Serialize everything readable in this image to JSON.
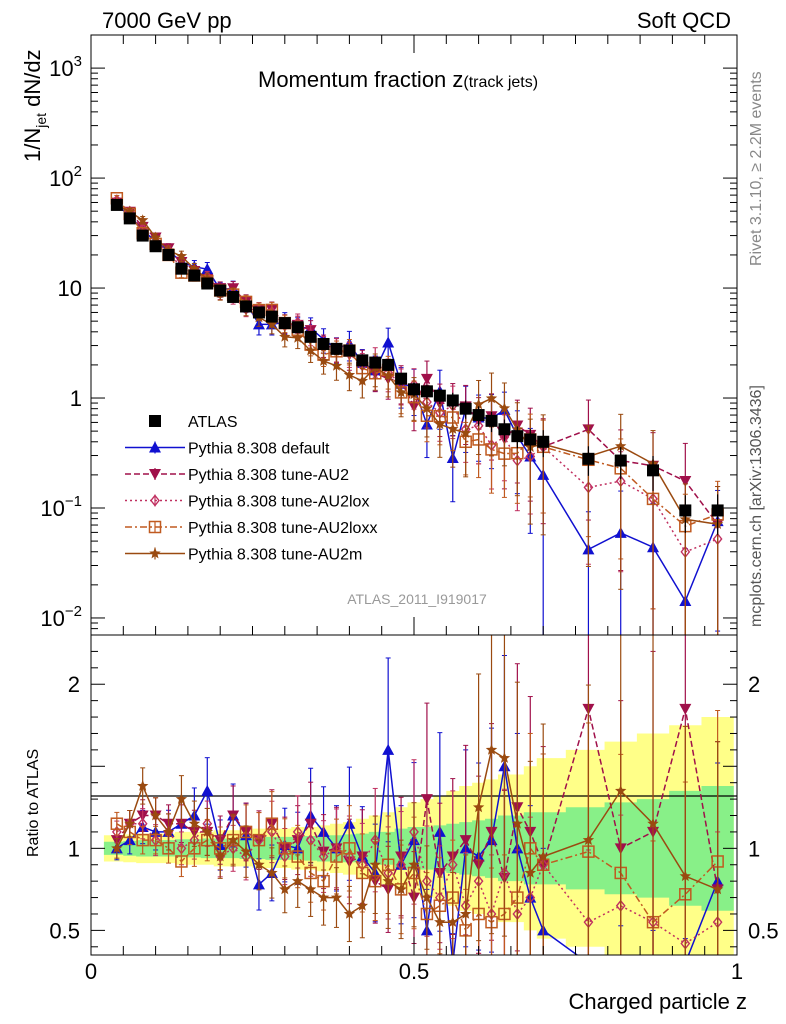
{
  "header": {
    "left": "7000 GeV pp",
    "right": "Soft QCD"
  },
  "side_labels": {
    "rivet": "Rivet 3.1.10, ≥ 2.2M events",
    "mcplots": "mcplots.cern.ch [arXiv:1306.3436]"
  },
  "plot_title": {
    "main": "Momentum fraction ",
    "z": "z",
    "sub": "(track jets)"
  },
  "watermark": "ATLAS_2011_I919017",
  "y_label_main": {
    "a": "1/N",
    "b": "jet",
    "c": " dN/dz"
  },
  "y_label_ratio": "Ratio to ATLAS",
  "x_label": "Charged particle z",
  "colors": {
    "atlas": "#000000",
    "default": "#1010d0",
    "au2": "#a0104a",
    "au2lox": "#c03060",
    "au2loxx": "#c05a20",
    "au2m": "#9a4a10",
    "band_inner": "#88f088",
    "band_outer": "#ffff88"
  },
  "chart_data": {
    "type": "line",
    "y_scale": "log",
    "x_range": [
      0,
      1
    ],
    "y_range": [
      0.007,
      2000
    ],
    "ratio_range": [
      0.35,
      2.3
    ],
    "x_ticks": [
      {
        "v": 0,
        "label": "0"
      },
      {
        "v": 0.5,
        "label": "0.5"
      },
      {
        "v": 1,
        "label": "1"
      }
    ],
    "y_ticks": [
      {
        "v": 0.01,
        "base": "10",
        "exp": "−2"
      },
      {
        "v": 0.1,
        "base": "10",
        "exp": "−1"
      },
      {
        "v": 1,
        "base": "1",
        "exp": ""
      },
      {
        "v": 10,
        "base": "10",
        "exp": ""
      },
      {
        "v": 100,
        "base": "10",
        "exp": "2"
      },
      {
        "v": 1000,
        "base": "10",
        "exp": "3"
      }
    ],
    "ratio_ticks": [
      {
        "v": 0.5,
        "label": "0.5"
      },
      {
        "v": 1,
        "label": "1"
      },
      {
        "v": 2,
        "label": "2"
      }
    ],
    "x": [
      0.04,
      0.06,
      0.08,
      0.1,
      0.12,
      0.14,
      0.16,
      0.18,
      0.2,
      0.22,
      0.24,
      0.26,
      0.28,
      0.3,
      0.32,
      0.34,
      0.36,
      0.38,
      0.4,
      0.42,
      0.44,
      0.46,
      0.48,
      0.5,
      0.52,
      0.54,
      0.56,
      0.58,
      0.6,
      0.62,
      0.64,
      0.66,
      0.68,
      0.7,
      0.77,
      0.82,
      0.87,
      0.92,
      0.97
    ],
    "atlas": [
      57,
      43,
      30,
      24,
      20,
      15,
      13,
      11,
      9.5,
      8.3,
      6.8,
      6.0,
      5.5,
      4.8,
      4.4,
      3.6,
      3.1,
      2.8,
      2.7,
      2.2,
      2.1,
      2.0,
      1.5,
      1.2,
      1.15,
      1.05,
      0.95,
      0.8,
      0.7,
      0.62,
      0.52,
      0.45,
      0.42,
      0.4,
      0.28,
      0.27,
      0.22,
      0.095,
      0.095
    ],
    "band_inner": [
      0.04,
      0.045,
      0.05,
      0.05,
      0.05,
      0.055,
      0.055,
      0.06,
      0.06,
      0.06,
      0.065,
      0.065,
      0.07,
      0.07,
      0.07,
      0.075,
      0.08,
      0.08,
      0.085,
      0.09,
      0.1,
      0.1,
      0.12,
      0.13,
      0.13,
      0.14,
      0.15,
      0.16,
      0.17,
      0.18,
      0.2,
      0.2,
      0.22,
      0.22,
      0.25,
      0.28,
      0.3,
      0.35,
      0.38
    ],
    "band_outer": [
      0.08,
      0.085,
      0.09,
      0.09,
      0.09,
      0.1,
      0.1,
      0.1,
      0.11,
      0.11,
      0.11,
      0.12,
      0.12,
      0.12,
      0.13,
      0.13,
      0.14,
      0.15,
      0.16,
      0.18,
      0.2,
      0.22,
      0.25,
      0.28,
      0.3,
      0.32,
      0.35,
      0.38,
      0.4,
      0.42,
      0.45,
      0.45,
      0.5,
      0.55,
      0.6,
      0.65,
      0.7,
      0.75,
      0.8
    ],
    "series": [
      {
        "key": "atlas",
        "name": "ATLAS",
        "marker": "square",
        "line": "none"
      },
      {
        "key": "default",
        "name": "Pythia 8.308 default",
        "marker": "triangle-up",
        "line": "solid",
        "ratio": [
          1.0,
          1.05,
          1.13,
          1.1,
          1.1,
          1.15,
          1.2,
          1.35,
          1.02,
          1.2,
          1.08,
          0.78,
          0.85,
          1.02,
          1.0,
          1.2,
          1.1,
          1.0,
          1.15,
          0.95,
          0.85,
          1.6,
          0.9,
          1.05,
          0.5,
          1.1,
          0.3,
          1.0,
          0.95,
          1.05,
          1.5,
          1.0,
          0.7,
          0.5,
          0.15,
          0.22,
          0.2,
          0.15,
          0.8
        ],
        "rel_err": [
          0.07,
          0.08,
          0.09,
          0.1,
          0.12,
          0.12,
          0.14,
          0.15,
          0.15,
          0.16,
          0.18,
          0.2,
          0.2,
          0.22,
          0.22,
          0.24,
          0.25,
          0.26,
          0.3,
          0.32,
          0.35,
          0.35,
          0.4,
          0.45,
          0.5,
          0.55,
          0.6,
          0.6,
          0.6,
          0.65,
          0.45,
          0.7,
          0.8,
          1.0,
          1.2,
          1.4,
          1.5,
          2.0,
          0.9
        ]
      },
      {
        "key": "au2",
        "name": "Pythia 8.308 tune-AU2",
        "marker": "triangle-down",
        "line": "dashed",
        "ratio": [
          1.05,
          1.15,
          1.2,
          1.2,
          1.15,
          1.15,
          1.1,
          1.1,
          1.05,
          1.2,
          1.1,
          1.05,
          1.15,
          1.0,
          1.05,
          1.15,
          0.98,
          1.0,
          0.92,
          0.95,
          0.8,
          0.75,
          0.95,
          0.7,
          1.3,
          0.85,
          0.95,
          1.05,
          0.9,
          1.1,
          0.82,
          1.25,
          1.1,
          0.9,
          1.85,
          1.0,
          1.1,
          1.85,
          0.75
        ],
        "rel_err": [
          0.06,
          0.07,
          0.08,
          0.09,
          0.1,
          0.1,
          0.12,
          0.13,
          0.14,
          0.15,
          0.16,
          0.17,
          0.18,
          0.19,
          0.2,
          0.22,
          0.23,
          0.25,
          0.28,
          0.3,
          0.32,
          0.35,
          0.38,
          0.4,
          0.45,
          0.5,
          0.5,
          0.55,
          0.6,
          0.6,
          0.65,
          0.7,
          0.75,
          0.8,
          0.85,
          0.9,
          1.0,
          1.2,
          1.2
        ]
      },
      {
        "key": "au2lox",
        "name": "Pythia 8.308 tune-AU2lox",
        "marker": "diamond",
        "line": "dotted",
        "ratio": [
          1.1,
          1.15,
          1.15,
          1.05,
          1.1,
          1.0,
          1.05,
          1.15,
          0.95,
          1.0,
          0.95,
          1.05,
          1.1,
          0.95,
          1.1,
          1.05,
          0.95,
          1.0,
          0.95,
          0.9,
          1.05,
          0.85,
          0.9,
          1.1,
          0.8,
          0.7,
          0.9,
          0.65,
          0.8,
          0.6,
          0.85,
          0.6,
          0.7,
          0.9,
          0.55,
          0.65,
          0.55,
          0.42,
          0.55
        ],
        "rel_err": [
          0.06,
          0.07,
          0.08,
          0.09,
          0.1,
          0.1,
          0.11,
          0.12,
          0.13,
          0.14,
          0.15,
          0.16,
          0.17,
          0.18,
          0.2,
          0.21,
          0.23,
          0.24,
          0.26,
          0.28,
          0.3,
          0.33,
          0.36,
          0.4,
          0.42,
          0.45,
          0.5,
          0.5,
          0.55,
          0.6,
          0.6,
          0.65,
          0.7,
          0.75,
          0.8,
          0.85,
          0.9,
          0.95,
          1.0
        ]
      },
      {
        "key": "au2loxx",
        "name": "Pythia 8.308 tune-AU2loxx",
        "marker": "square-open",
        "line": "dashdot",
        "ratio": [
          1.15,
          1.1,
          1.05,
          1.05,
          1.0,
          0.92,
          1.0,
          1.05,
          1.0,
          1.05,
          1.1,
          1.05,
          1.15,
          1.0,
          0.95,
          0.85,
          0.8,
          0.95,
          1.0,
          0.85,
          0.8,
          0.9,
          0.75,
          0.85,
          0.6,
          0.65,
          0.7,
          0.5,
          0.6,
          0.55,
          0.6,
          0.7,
          1.0,
          0.9,
          0.98,
          0.85,
          0.55,
          0.72,
          0.92
        ],
        "rel_err": [
          0.06,
          0.07,
          0.08,
          0.08,
          0.09,
          0.1,
          0.11,
          0.12,
          0.13,
          0.14,
          0.15,
          0.16,
          0.17,
          0.18,
          0.2,
          0.21,
          0.22,
          0.24,
          0.26,
          0.28,
          0.3,
          0.33,
          0.36,
          0.4,
          0.42,
          0.45,
          0.5,
          0.5,
          0.55,
          0.6,
          0.6,
          0.65,
          0.7,
          0.75,
          0.8,
          0.85,
          0.9,
          0.95,
          1.0
        ]
      },
      {
        "key": "au2m",
        "name": "Pythia 8.308 tune-AU2m",
        "marker": "star",
        "line": "solid",
        "ratio": [
          1.0,
          1.15,
          1.38,
          1.2,
          1.1,
          1.3,
          1.15,
          1.1,
          0.95,
          1.05,
          0.98,
          0.9,
          0.85,
          0.75,
          0.8,
          0.75,
          0.7,
          0.7,
          0.6,
          0.65,
          0.9,
          0.8,
          0.75,
          0.9,
          0.7,
          0.55,
          0.55,
          0.6,
          1.25,
          1.6,
          1.55,
          1.15,
          0.85,
          0.95,
          1.05,
          1.35,
          1.15,
          0.83,
          0.75
        ],
        "rel_err": [
          0.06,
          0.07,
          0.08,
          0.09,
          0.1,
          0.11,
          0.12,
          0.13,
          0.14,
          0.15,
          0.16,
          0.17,
          0.18,
          0.19,
          0.2,
          0.22,
          0.24,
          0.26,
          0.28,
          0.3,
          0.33,
          0.36,
          0.4,
          0.42,
          0.45,
          0.5,
          0.55,
          0.6,
          0.65,
          0.7,
          0.7,
          0.75,
          0.8,
          0.85,
          0.9,
          0.95,
          1.0,
          1.1,
          1.2
        ]
      }
    ]
  }
}
